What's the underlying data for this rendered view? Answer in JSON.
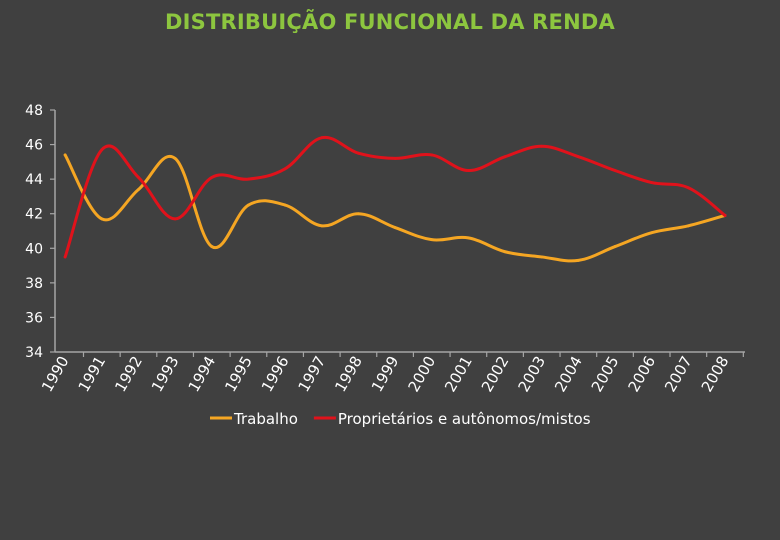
{
  "colors": {
    "background": "#404040",
    "title": "#8dc63f",
    "axis": "#a6a6a6",
    "tick_text": "#ffffff",
    "legend_text": "#ffffff"
  },
  "chart_data": {
    "type": "line",
    "title": "DISTRIBUIÇÃO FUNCIONAL DA RENDA",
    "xlabel": "",
    "ylabel": "",
    "ylim": [
      34,
      48
    ],
    "yticks": [
      "34",
      "36",
      "38",
      "40",
      "42",
      "44",
      "46",
      "48"
    ],
    "categories": [
      "1990",
      "1991",
      "1992",
      "1993",
      "1994",
      "1995",
      "1996",
      "1997",
      "1998",
      "1999",
      "2000",
      "2001",
      "2002",
      "2003",
      "2004",
      "2005",
      "2006",
      "2007",
      "2008"
    ],
    "grid": false,
    "legend_position": "bottom",
    "series": [
      {
        "name": "Trabalho",
        "color": "#f5a623",
        "values": [
          45.4,
          41.7,
          43.4,
          45.2,
          40.1,
          42.5,
          42.5,
          41.3,
          42.0,
          41.2,
          40.5,
          40.6,
          39.8,
          39.5,
          39.3,
          40.1,
          40.9,
          41.3,
          41.9
        ]
      },
      {
        "name": "Proprietários e autônomos/mistos",
        "color": "#e0121b",
        "values": [
          39.5,
          45.7,
          44.1,
          41.7,
          44.1,
          44.0,
          44.6,
          46.4,
          45.5,
          45.2,
          45.4,
          44.5,
          45.3,
          45.9,
          45.3,
          44.5,
          43.8,
          43.5,
          41.9
        ]
      }
    ]
  }
}
